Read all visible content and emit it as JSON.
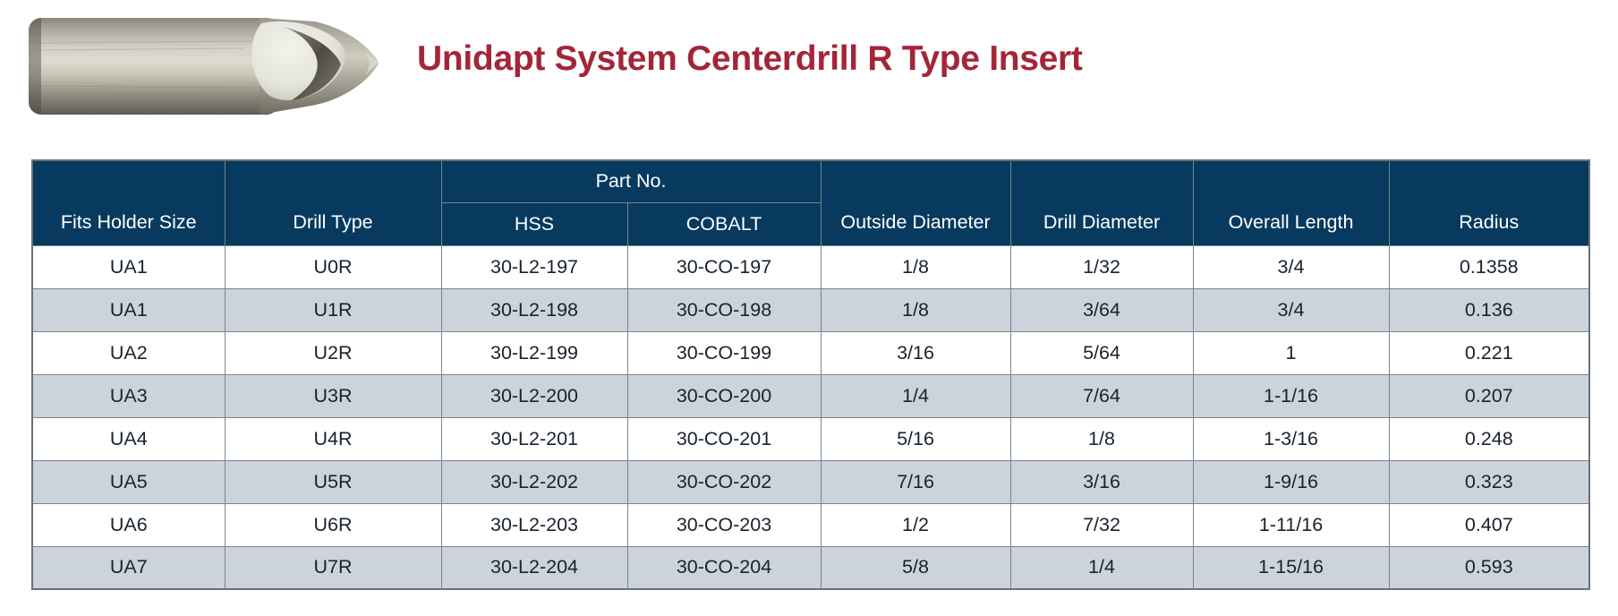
{
  "page": {
    "title": "Unidapt System Centerdrill R Type Insert",
    "title_color": "#A32638"
  },
  "product_image": {
    "name": "centerdrill-r-type-insert-photo",
    "description": "metal centerdrill insert with fluted tip"
  },
  "table": {
    "header": {
      "fits_holder_size": "Fits Holder Size",
      "drill_type": "Drill Type",
      "part_no_group": "Part No.",
      "hss": "HSS",
      "cobalt": "COBALT",
      "outside_diameter": "Outside Diameter",
      "drill_diameter": "Drill Diameter",
      "overall_length": "Overall Length",
      "radius": "Radius"
    },
    "column_ids": [
      "fits-holder-size",
      "drill-type",
      "hss",
      "cobalt",
      "outside-diameter",
      "drill-diameter",
      "overall-length",
      "radius"
    ],
    "rows": [
      [
        "UA1",
        "U0R",
        "30-L2-197",
        "30-CO-197",
        "1/8",
        "1/32",
        "3/4",
        "0.1358"
      ],
      [
        "UA1",
        "U1R",
        "30-L2-198",
        "30-CO-198",
        "1/8",
        "3/64",
        "3/4",
        "0.136"
      ],
      [
        "UA2",
        "U2R",
        "30-L2-199",
        "30-CO-199",
        "3/16",
        "5/64",
        "1",
        "0.221"
      ],
      [
        "UA3",
        "U3R",
        "30-L2-200",
        "30-CO-200",
        "1/4",
        "7/64",
        "1-1/16",
        "0.207"
      ],
      [
        "UA4",
        "U4R",
        "30-L2-201",
        "30-CO-201",
        "5/16",
        "1/8",
        "1-3/16",
        "0.248"
      ],
      [
        "UA5",
        "U5R",
        "30-L2-202",
        "30-CO-202",
        "7/16",
        "3/16",
        "1-9/16",
        "0.323"
      ],
      [
        "UA6",
        "U6R",
        "30-L2-203",
        "30-CO-203",
        "1/2",
        "7/32",
        "1-11/16",
        "0.407"
      ],
      [
        "UA7",
        "U7R",
        "30-L2-204",
        "30-CO-204",
        "5/8",
        "1/4",
        "1-15/16",
        "0.593"
      ]
    ],
    "colors": {
      "header_bg": "#073A5E",
      "header_text": "#FFFFFF",
      "row_alt_bg": "#CCD3DA",
      "border": "#7B858D",
      "border_outer": "#68727A",
      "cell_text": "#18232E"
    }
  }
}
